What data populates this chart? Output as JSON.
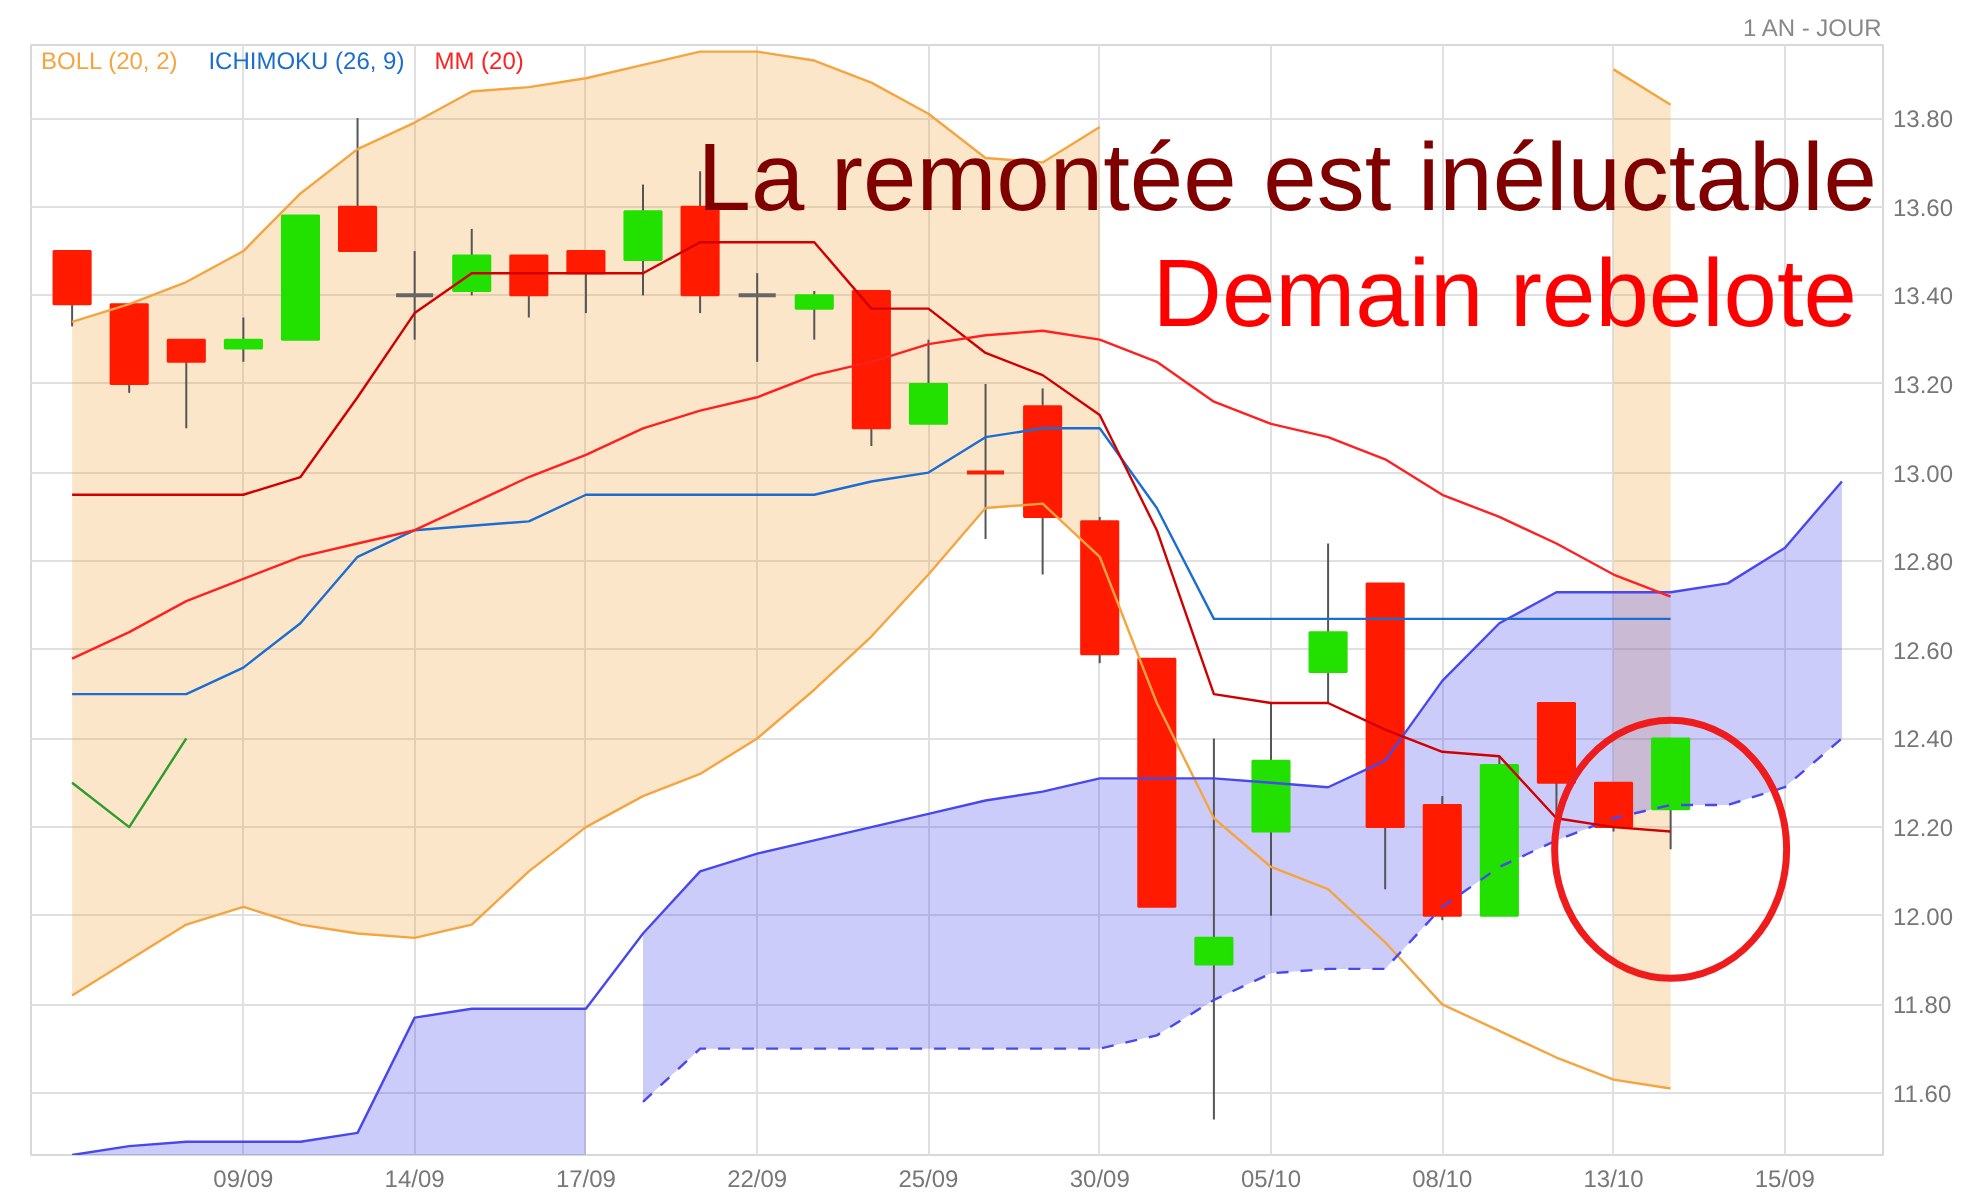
{
  "chart_data": {
    "type": "candlestick",
    "title": "La remontée est inéluctable",
    "subtitle": "Demain rebelote",
    "annotations": [
      "1 AN - JOUR"
    ],
    "categories": [
      null,
      null,
      null,
      "09/09",
      null,
      null,
      "14/09",
      null,
      null,
      "17/09",
      null,
      null,
      "22/09",
      null,
      null,
      "25/09",
      null,
      null,
      "30/09",
      null,
      null,
      "05/10",
      null,
      null,
      "08/10",
      null,
      null,
      "13/10",
      null,
      null,
      "15/09",
      null
    ],
    "ohlc": [
      [
        13.5,
        13.5,
        13.33,
        13.38
      ],
      [
        13.38,
        13.38,
        13.18,
        13.2
      ],
      [
        13.3,
        13.3,
        13.1,
        13.25
      ],
      [
        13.28,
        13.35,
        13.25,
        13.3
      ],
      [
        13.3,
        13.58,
        13.3,
        13.58
      ],
      [
        13.6,
        13.8,
        13.5,
        13.5
      ],
      [
        13.4,
        13.5,
        13.3,
        13.4
      ],
      [
        13.41,
        13.55,
        13.4,
        13.49
      ],
      [
        13.49,
        13.49,
        13.35,
        13.4
      ],
      [
        13.5,
        13.5,
        13.36,
        13.45
      ],
      [
        13.48,
        13.65,
        13.4,
        13.59
      ],
      [
        13.6,
        13.68,
        13.36,
        13.4
      ],
      [
        13.4,
        13.45,
        13.25,
        13.4
      ],
      [
        13.37,
        13.41,
        13.3,
        13.4
      ],
      [
        13.41,
        13.41,
        13.06,
        13.1
      ],
      [
        13.11,
        13.3,
        13.11,
        13.2
      ],
      [
        13.0,
        13.2,
        12.85,
        13.0
      ],
      [
        13.15,
        13.19,
        12.77,
        12.9
      ],
      [
        12.89,
        12.9,
        12.57,
        12.59
      ],
      [
        12.58,
        12.58,
        12.02,
        12.02
      ],
      [
        11.89,
        12.4,
        11.54,
        11.95
      ],
      [
        12.19,
        12.48,
        12.0,
        12.35
      ],
      [
        12.55,
        12.84,
        12.48,
        12.64
      ],
      [
        12.75,
        12.75,
        12.06,
        12.2
      ],
      [
        12.25,
        12.27,
        11.99,
        12.0
      ],
      [
        12.0,
        12.36,
        12.0,
        12.34
      ],
      [
        12.48,
        12.48,
        12.22,
        12.3
      ],
      [
        12.3,
        12.3,
        12.19,
        12.2
      ],
      [
        12.24,
        12.4,
        12.15,
        12.4
      ],
      null,
      null,
      null
    ],
    "colors": [
      "#ff1a00",
      "#ff1a00",
      "#ff1a00",
      "#22e000",
      "#22e000",
      "#ff1a00",
      "#666666",
      "#22e000",
      "#ff1a00",
      "#ff1a00",
      "#22e000",
      "#ff1a00",
      "#666666",
      "#22e000",
      "#ff1a00",
      "#22e000",
      "#ff1a00",
      "#ff1a00",
      "#ff1a00",
      "#ff1a00",
      "#22e000",
      "#22e000",
      "#22e000",
      "#ff1a00",
      "#ff1a00",
      "#22e000",
      "#ff1a00",
      "#ff1a00",
      "#22e000",
      null,
      null,
      null
    ],
    "series": [
      {
        "name": "BOLL (20, 2)",
        "type": "line",
        "color": "#f5a540",
        "values": [
          13.34,
          13.38,
          13.43,
          13.5,
          13.63,
          13.73,
          13.79,
          13.86,
          13.87,
          13.89,
          13.92,
          13.95,
          13.95,
          13.93,
          13.88,
          13.81,
          13.71,
          13.7,
          13.78,
          null,
          null,
          null,
          null,
          null,
          null,
          null,
          null,
          13.91,
          13.83,
          null,
          null,
          null
        ],
        "lower": [
          11.82,
          11.9,
          11.98,
          12.02,
          11.98,
          11.96,
          11.95,
          11.98,
          12.1,
          12.2,
          12.27,
          12.32,
          12.4,
          12.51,
          12.63,
          12.77,
          12.92,
          12.93,
          12.81,
          null,
          null,
          null,
          null,
          null,
          null,
          null,
          null,
          11.63,
          11.61,
          null,
          null,
          null
        ],
        "upper": [
          13.34,
          13.38,
          13.43,
          13.5,
          13.63,
          13.73,
          13.79,
          13.86,
          13.87,
          13.89,
          13.92,
          13.95,
          13.95,
          13.93,
          13.88,
          13.81,
          13.71,
          13.7,
          13.78,
          null,
          null,
          null,
          null,
          null,
          null,
          null,
          null,
          13.91,
          13.83,
          null,
          null,
          null
        ]
      },
      {
        "type": "line",
        "color": "#f5a540",
        "values": [
          11.82,
          11.9,
          11.98,
          12.02,
          11.98,
          11.96,
          11.95,
          11.98,
          12.1,
          12.2,
          12.27,
          12.32,
          12.4,
          12.51,
          12.63,
          12.77,
          12.92,
          12.93,
          12.81,
          12.48,
          12.22,
          12.11,
          12.06,
          11.94,
          11.8,
          11.74,
          11.68,
          11.63,
          11.61,
          null,
          null,
          null
        ]
      },
      {
        "type": "line",
        "color": "#4848f0",
        "values": [
          11.46,
          11.48,
          11.49,
          11.49,
          11.49,
          11.51,
          11.77,
          11.79,
          11.79,
          11.79,
          11.96,
          12.1,
          12.14,
          12.17,
          12.2,
          12.23,
          12.26,
          12.28,
          12.31,
          12.31,
          12.31,
          12.3,
          12.29,
          12.35,
          12.53,
          12.66,
          12.73,
          12.73,
          12.73,
          12.75,
          12.83,
          12.98
        ]
      },
      {
        "type": "line",
        "color": "#4848f0",
        "line_style": "dashed",
        "values": [
          null,
          null,
          null,
          null,
          null,
          null,
          null,
          null,
          null,
          null,
          11.58,
          11.7,
          11.7,
          11.7,
          11.7,
          11.7,
          11.7,
          11.7,
          11.7,
          11.73,
          11.81,
          11.87,
          11.88,
          11.88,
          12.02,
          12.11,
          12.17,
          12.22,
          12.25,
          12.25,
          12.29,
          12.4
        ],
        "lower": [
          null,
          null,
          null,
          null,
          null,
          null,
          null,
          null,
          null,
          null,
          11.58,
          11.7,
          11.7,
          11.7,
          11.7,
          11.7,
          11.7,
          11.7,
          11.7,
          11.73,
          11.81,
          11.87,
          11.88,
          11.88,
          12.02,
          12.11,
          12.17,
          12.22,
          12.25,
          12.25,
          12.29,
          12.4
        ],
        "upper": [
          null,
          null,
          null,
          null,
          null,
          null,
          null,
          null,
          null,
          null,
          11.96,
          12.1,
          12.14,
          12.17,
          12.2,
          12.23,
          12.26,
          12.28,
          12.31,
          12.31,
          12.31,
          12.3,
          12.29,
          12.35,
          12.53,
          12.66,
          12.73,
          12.73,
          12.73,
          12.75,
          12.83,
          12.98
        ]
      },
      {
        "type": "area",
        "color": "#4848f0",
        "values": [
          11.46,
          11.48,
          11.49,
          11.49,
          11.49,
          11.51,
          11.77,
          11.79,
          11.79,
          11.79,
          null,
          null,
          null,
          null,
          null,
          null,
          null,
          null,
          null,
          null,
          null,
          null,
          null,
          null,
          null,
          null,
          null,
          null,
          null,
          null,
          null,
          null
        ]
      },
      {
        "name": "ICHIMOKU (26, 9)",
        "type": "line",
        "color": "#1c6dd0",
        "values": [
          12.5,
          12.5,
          12.5,
          12.56,
          12.66,
          12.81,
          12.87,
          12.88,
          12.89,
          12.95,
          12.95,
          12.95,
          12.95,
          12.95,
          12.98,
          13.0,
          13.08,
          13.1,
          13.1,
          12.92,
          12.67,
          12.67,
          12.67,
          12.67,
          12.67,
          12.67,
          12.67,
          12.67,
          12.67,
          null,
          null,
          null
        ]
      },
      {
        "type": "line",
        "color": "#d00000",
        "values": [
          12.95,
          12.95,
          12.95,
          12.95,
          12.99,
          13.17,
          13.36,
          13.45,
          13.45,
          13.45,
          13.45,
          13.52,
          13.52,
          13.52,
          13.37,
          13.37,
          13.27,
          13.22,
          13.13,
          12.87,
          12.5,
          12.48,
          12.48,
          12.42,
          12.37,
          12.36,
          12.22,
          12.2,
          12.19,
          null,
          null,
          null
        ]
      },
      {
        "type": "line",
        "color": "#2c9c2c",
        "values": [
          12.3,
          12.2,
          12.4,
          null,
          null,
          null,
          null,
          null,
          null,
          null,
          null,
          null,
          null,
          null,
          null,
          null,
          null,
          null,
          null,
          null,
          null,
          null,
          null,
          null,
          null,
          null,
          null,
          null,
          null,
          null,
          null,
          null
        ]
      },
      {
        "name": "MM (20)",
        "type": "line",
        "color": "#ff2020",
        "values": [
          12.58,
          12.64,
          12.71,
          12.76,
          12.81,
          12.84,
          12.87,
          12.93,
          12.99,
          13.04,
          13.1,
          13.14,
          13.17,
          13.22,
          13.25,
          13.29,
          13.31,
          13.32,
          13.3,
          13.25,
          13.16,
          13.11,
          13.08,
          13.03,
          12.95,
          12.9,
          12.84,
          12.77,
          12.72,
          null,
          null,
          null
        ]
      }
    ],
    "ylim": [
      11.46,
      13.965
    ],
    "yticks": [
      {
        "value": 11.6,
        "label": "11.60"
      },
      {
        "value": 11.8,
        "label": "11.80"
      },
      {
        "value": 12.0,
        "label": "12.00"
      },
      {
        "value": 12.2,
        "label": "12.20"
      },
      {
        "value": 12.4,
        "label": "12.40"
      },
      {
        "value": 12.6,
        "label": "12.60"
      },
      {
        "value": 12.8,
        "label": "12.80"
      },
      {
        "value": 13.0,
        "label": "13.00"
      },
      {
        "value": 13.2,
        "label": "13.20"
      },
      {
        "value": 13.4,
        "label": "13.40"
      },
      {
        "value": 13.6,
        "label": "13.60"
      },
      {
        "value": 13.8,
        "label": "13.80"
      }
    ],
    "grid": true,
    "legend": "top left"
  }
}
